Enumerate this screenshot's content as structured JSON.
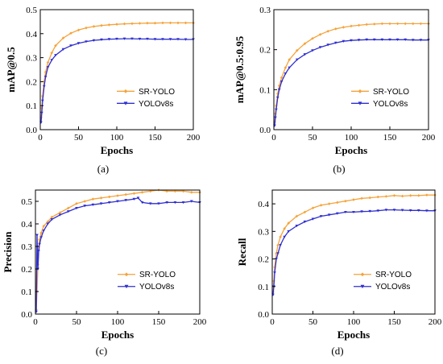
{
  "colors": {
    "sr_yolo": "#f5a33a",
    "yolov8s": "#2f2fd0",
    "axis": "#000000"
  },
  "chart_data": [
    {
      "type": "line",
      "caption": "(a)",
      "xlabel": "Epochs",
      "ylabel": "mAP@0.5",
      "xlim": [
        0,
        200
      ],
      "ylim": [
        0,
        0.5
      ],
      "xticks": [
        "0",
        "50",
        "100",
        "150",
        "200"
      ],
      "yticks": [
        "0.0",
        "0.1",
        "0.2",
        "0.3",
        "0.4",
        "0.5"
      ],
      "grid": false,
      "legend_position": "lower-right",
      "series": [
        {
          "name": "SR-YOLO",
          "color_key": "sr_yolo",
          "marker": "diamond",
          "x": [
            1,
            2,
            3,
            5,
            7,
            10,
            15,
            20,
            30,
            40,
            50,
            60,
            70,
            80,
            90,
            100,
            110,
            120,
            130,
            140,
            150,
            160,
            170,
            180,
            190,
            200
          ],
          "y": [
            0.05,
            0.09,
            0.14,
            0.2,
            0.24,
            0.28,
            0.32,
            0.35,
            0.382,
            0.402,
            0.415,
            0.424,
            0.43,
            0.434,
            0.437,
            0.439,
            0.441,
            0.442,
            0.443,
            0.444,
            0.444,
            0.445,
            0.445,
            0.445,
            0.445,
            0.445
          ]
        },
        {
          "name": "YOLOv8s",
          "color_key": "yolov8s",
          "marker": "triangle-down",
          "x": [
            1,
            2,
            3,
            5,
            7,
            10,
            15,
            20,
            30,
            40,
            50,
            60,
            70,
            80,
            90,
            100,
            110,
            120,
            130,
            140,
            150,
            160,
            170,
            180,
            190,
            200
          ],
          "y": [
            0.03,
            0.07,
            0.12,
            0.18,
            0.22,
            0.26,
            0.29,
            0.31,
            0.335,
            0.35,
            0.36,
            0.367,
            0.372,
            0.375,
            0.377,
            0.378,
            0.379,
            0.379,
            0.378,
            0.378,
            0.377,
            0.377,
            0.377,
            0.377,
            0.376,
            0.376
          ]
        }
      ]
    },
    {
      "type": "line",
      "caption": "(b)",
      "xlabel": "Epochs",
      "ylabel": "mAP@0.5:0.95",
      "xlim": [
        0,
        200
      ],
      "ylim": [
        0,
        0.3
      ],
      "xticks": [
        "0",
        "50",
        "100",
        "150",
        "200"
      ],
      "yticks": [
        "0.0",
        "0.1",
        "0.2",
        "0.3"
      ],
      "grid": false,
      "legend_position": "lower-right",
      "series": [
        {
          "name": "SR-YOLO",
          "color_key": "sr_yolo",
          "marker": "diamond",
          "x": [
            1,
            2,
            3,
            5,
            7,
            10,
            15,
            20,
            30,
            40,
            50,
            60,
            70,
            80,
            90,
            100,
            110,
            120,
            130,
            140,
            150,
            160,
            170,
            180,
            190,
            200
          ],
          "y": [
            0.02,
            0.04,
            0.06,
            0.09,
            0.11,
            0.13,
            0.155,
            0.175,
            0.198,
            0.215,
            0.228,
            0.238,
            0.246,
            0.252,
            0.256,
            0.259,
            0.261,
            0.263,
            0.264,
            0.265,
            0.265,
            0.265,
            0.265,
            0.265,
            0.265,
            0.265
          ]
        },
        {
          "name": "YOLOv8s",
          "color_key": "yolov8s",
          "marker": "triangle-down",
          "x": [
            1,
            2,
            3,
            5,
            7,
            10,
            15,
            20,
            30,
            40,
            50,
            60,
            70,
            80,
            90,
            100,
            110,
            120,
            130,
            140,
            150,
            160,
            170,
            180,
            190,
            200
          ],
          "y": [
            0.01,
            0.03,
            0.05,
            0.08,
            0.1,
            0.12,
            0.14,
            0.155,
            0.175,
            0.188,
            0.198,
            0.206,
            0.212,
            0.217,
            0.221,
            0.223,
            0.224,
            0.225,
            0.225,
            0.225,
            0.225,
            0.225,
            0.225,
            0.224,
            0.224,
            0.224
          ]
        }
      ]
    },
    {
      "type": "line",
      "caption": "(c)",
      "xlabel": "Epochs",
      "ylabel": "Precision",
      "xlim": [
        0,
        200
      ],
      "ylim": [
        0,
        0.55
      ],
      "xticks": [
        "0",
        "50",
        "100",
        "150",
        "200"
      ],
      "yticks": [
        "0.0",
        "0.1",
        "0.2",
        "0.3",
        "0.4",
        "0.5"
      ],
      "grid": false,
      "legend_position": "lower-right",
      "series": [
        {
          "name": "SR-YOLO",
          "color_key": "sr_yolo",
          "marker": "diamond",
          "x": [
            1,
            2,
            3,
            4,
            5,
            7,
            10,
            15,
            20,
            30,
            40,
            50,
            60,
            70,
            80,
            90,
            100,
            110,
            120,
            130,
            140,
            150,
            160,
            170,
            180,
            190,
            200
          ],
          "y": [
            0.02,
            0.1,
            0.22,
            0.3,
            0.33,
            0.36,
            0.39,
            0.41,
            0.43,
            0.45,
            0.47,
            0.49,
            0.5,
            0.51,
            0.515,
            0.52,
            0.525,
            0.53,
            0.535,
            0.54,
            0.545,
            0.55,
            0.545,
            0.545,
            0.545,
            0.54,
            0.54
          ]
        },
        {
          "name": "YOLOv8s",
          "color_key": "yolov8s",
          "marker": "triangle-down",
          "x": [
            1,
            2,
            3,
            4,
            5,
            7,
            10,
            15,
            20,
            30,
            40,
            50,
            60,
            70,
            80,
            90,
            100,
            110,
            120,
            125,
            130,
            140,
            150,
            160,
            170,
            180,
            190,
            200
          ],
          "y": [
            0.01,
            0.35,
            0.2,
            0.28,
            0.31,
            0.34,
            0.37,
            0.4,
            0.42,
            0.44,
            0.455,
            0.47,
            0.48,
            0.485,
            0.49,
            0.495,
            0.5,
            0.505,
            0.51,
            0.515,
            0.495,
            0.49,
            0.49,
            0.495,
            0.495,
            0.495,
            0.5,
            0.495
          ]
        }
      ]
    },
    {
      "type": "line",
      "caption": "(d)",
      "xlabel": "Epochs",
      "ylabel": "Recall",
      "xlim": [
        0,
        200
      ],
      "ylim": [
        0,
        0.45
      ],
      "xticks": [
        "0",
        "50",
        "100",
        "150",
        "200"
      ],
      "yticks": [
        "0.0",
        "0.1",
        "0.2",
        "0.3",
        "0.4"
      ],
      "grid": false,
      "legend_position": "lower-right",
      "series": [
        {
          "name": "SR-YOLO",
          "color_key": "sr_yolo",
          "marker": "diamond",
          "x": [
            1,
            2,
            3,
            5,
            7,
            10,
            15,
            20,
            30,
            40,
            50,
            60,
            70,
            80,
            90,
            100,
            110,
            120,
            130,
            140,
            150,
            160,
            170,
            180,
            190,
            200
          ],
          "y": [
            0.08,
            0.12,
            0.17,
            0.22,
            0.25,
            0.28,
            0.31,
            0.33,
            0.355,
            0.37,
            0.385,
            0.395,
            0.4,
            0.405,
            0.41,
            0.415,
            0.42,
            0.422,
            0.425,
            0.427,
            0.43,
            0.428,
            0.43,
            0.43,
            0.432,
            0.432
          ]
        },
        {
          "name": "YOLOv8s",
          "color_key": "yolov8s",
          "marker": "triangle-down",
          "x": [
            1,
            2,
            3,
            5,
            7,
            10,
            15,
            20,
            30,
            40,
            50,
            60,
            70,
            80,
            90,
            100,
            110,
            120,
            130,
            140,
            150,
            160,
            170,
            180,
            190,
            200
          ],
          "y": [
            0.07,
            0.1,
            0.15,
            0.2,
            0.22,
            0.25,
            0.28,
            0.3,
            0.32,
            0.335,
            0.345,
            0.355,
            0.36,
            0.365,
            0.37,
            0.37,
            0.372,
            0.373,
            0.375,
            0.378,
            0.378,
            0.377,
            0.376,
            0.376,
            0.375,
            0.375
          ]
        }
      ]
    }
  ]
}
